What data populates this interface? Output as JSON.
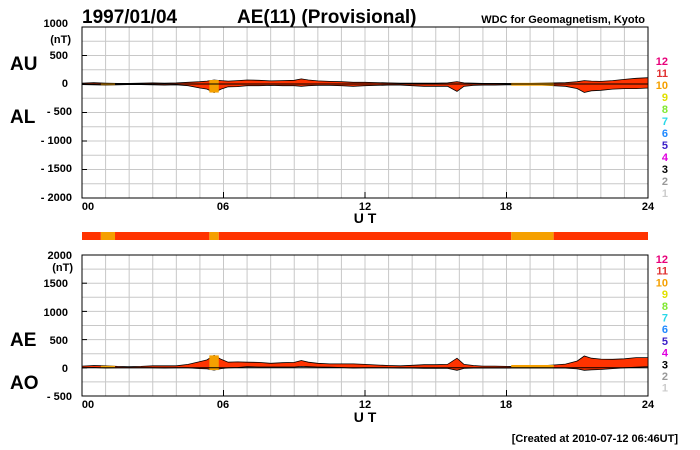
{
  "header": {
    "date": "1997/01/04",
    "title": "AE(11) (Provisional)",
    "source": "WDC for Geomagnetism, Kyoto"
  },
  "footer": {
    "created": "[Created at 2010-07-12 06:46UT]"
  },
  "colors": {
    "fill_main": "#ff3300",
    "fill_low": "#f5a000",
    "grid": "#c8c8c8",
    "scale": [
      "#cccccc",
      "#999999",
      "#000000",
      "#e000e0",
      "#3a1fc8",
      "#1e88ff",
      "#2ad8e8",
      "#80e830",
      "#e0e000",
      "#f5a000",
      "#e03030",
      "#e8007a"
    ]
  },
  "scale_labels": [
    "1",
    "2",
    "3",
    "4",
    "5",
    "6",
    "7",
    "8",
    "9",
    "10",
    "11",
    "12"
  ],
  "chart_data": [
    {
      "type": "area",
      "panel": "AU/AL",
      "left_labels": [
        "AU",
        "AL"
      ],
      "yunit": "(nT)",
      "ylim": [
        -2000,
        1000
      ],
      "yticks": [
        1000,
        500,
        0,
        -500,
        -1000,
        -1500,
        -2000
      ],
      "ytick_labels": [
        "1000",
        "500",
        "0",
        "- 500",
        "- 1000",
        "- 1500",
        "- 2000"
      ],
      "xlim": [
        0,
        24
      ],
      "xticks": [
        0,
        6,
        12,
        18,
        24
      ],
      "xtick_labels": [
        "00",
        "06",
        "12",
        "18",
        "24"
      ],
      "xlabel": "U T",
      "grid": true,
      "series": [
        {
          "x": [
            0,
            0.5,
            1,
            1.5,
            2,
            2.5,
            3,
            3.5,
            4,
            4.5,
            5,
            5.3,
            5.6,
            5.9,
            6.2,
            6.6,
            7,
            7.5,
            8,
            8.5,
            9,
            9.3,
            9.6,
            10,
            10.5,
            11,
            11.5,
            12,
            12.5,
            13,
            13.5,
            14,
            14.5,
            15,
            15.5,
            15.9,
            16.2,
            16.6,
            17,
            17.5,
            18,
            18.5,
            19,
            19.5,
            20,
            20.5,
            21,
            21.3,
            21.6,
            22,
            22.5,
            23,
            23.5,
            24
          ],
          "values": [
            15,
            25,
            15,
            10,
            10,
            15,
            20,
            15,
            20,
            30,
            40,
            50,
            70,
            60,
            50,
            60,
            70,
            65,
            55,
            60,
            65,
            90,
            70,
            55,
            45,
            40,
            30,
            30,
            25,
            20,
            15,
            15,
            15,
            15,
            20,
            40,
            20,
            15,
            10,
            10,
            10,
            5,
            10,
            15,
            20,
            25,
            40,
            60,
            50,
            45,
            60,
            80,
            100,
            110
          ]
        },
        {
          "x": [
            0,
            0.5,
            1,
            1.5,
            2,
            2.5,
            3,
            3.5,
            4,
            4.5,
            5,
            5.3,
            5.6,
            5.9,
            6.2,
            6.6,
            7,
            7.5,
            8,
            8.5,
            9,
            9.3,
            9.6,
            10,
            10.5,
            11,
            11.5,
            12,
            12.5,
            13,
            13.5,
            14,
            14.5,
            15,
            15.5,
            15.9,
            16.2,
            16.6,
            17,
            17.5,
            18,
            18.5,
            19,
            19.5,
            20,
            20.5,
            21,
            21.3,
            21.6,
            22,
            22.5,
            23,
            23.5,
            24
          ],
          "values": [
            -10,
            -15,
            -20,
            -15,
            -10,
            -10,
            -15,
            -20,
            -15,
            -30,
            -70,
            -90,
            -150,
            -90,
            -50,
            -45,
            -30,
            -30,
            -25,
            -30,
            -30,
            -40,
            -30,
            -25,
            -25,
            -30,
            -40,
            -30,
            -25,
            -20,
            -20,
            -30,
            -40,
            -40,
            -40,
            -130,
            -40,
            -25,
            -20,
            -20,
            -15,
            -15,
            -20,
            -20,
            -30,
            -40,
            -80,
            -150,
            -120,
            -110,
            -90,
            -80,
            -80,
            -70
          ]
        }
      ]
    },
    {
      "type": "area",
      "panel": "AE/AO",
      "left_labels": [
        "AE",
        "AO"
      ],
      "yunit": "(nT)",
      "ylim": [
        -500,
        2000
      ],
      "yticks": [
        2000,
        1500,
        1000,
        500,
        0,
        -500
      ],
      "ytick_labels": [
        "2000",
        "1500",
        "1000",
        "500",
        "0",
        "- 500"
      ],
      "xlim": [
        0,
        24
      ],
      "xticks": [
        0,
        6,
        12,
        18,
        24
      ],
      "xtick_labels": [
        "00",
        "06",
        "12",
        "18",
        "24"
      ],
      "xlabel": "U T",
      "grid": true,
      "series": [
        {
          "x": [
            0,
            0.5,
            1,
            1.5,
            2,
            2.5,
            3,
            3.5,
            4,
            4.5,
            5,
            5.3,
            5.6,
            5.9,
            6.2,
            6.6,
            7,
            7.5,
            8,
            8.5,
            9,
            9.3,
            9.6,
            10,
            10.5,
            11,
            11.5,
            12,
            12.5,
            13,
            13.5,
            14,
            14.5,
            15,
            15.5,
            15.9,
            16.2,
            16.6,
            17,
            17.5,
            18,
            18.5,
            19,
            19.5,
            20,
            20.5,
            21,
            21.3,
            21.6,
            22,
            22.5,
            23,
            23.5,
            24
          ],
          "values": [
            30,
            40,
            35,
            25,
            20,
            25,
            35,
            35,
            35,
            60,
            110,
            140,
            220,
            150,
            100,
            105,
            100,
            95,
            80,
            90,
            95,
            130,
            100,
            80,
            70,
            70,
            70,
            60,
            50,
            40,
            35,
            45,
            55,
            55,
            60,
            170,
            60,
            40,
            30,
            30,
            25,
            20,
            30,
            35,
            50,
            65,
            120,
            210,
            170,
            155,
            150,
            160,
            180,
            180
          ]
        },
        {
          "x": [
            0,
            0.5,
            1,
            1.5,
            2,
            2.5,
            3,
            3.5,
            4,
            4.5,
            5,
            5.3,
            5.6,
            5.9,
            6.2,
            6.6,
            7,
            7.5,
            8,
            8.5,
            9,
            9.3,
            9.6,
            10,
            10.5,
            11,
            11.5,
            12,
            12.5,
            13,
            13.5,
            14,
            14.5,
            15,
            15.5,
            15.9,
            16.2,
            16.6,
            17,
            17.5,
            18,
            18.5,
            19,
            19.5,
            20,
            20.5,
            21,
            21.3,
            21.6,
            22,
            22.5,
            23,
            23.5,
            24
          ],
          "values": [
            0,
            5,
            -5,
            0,
            0,
            0,
            0,
            -5,
            0,
            0,
            -15,
            -20,
            -40,
            -15,
            0,
            5,
            20,
            15,
            15,
            15,
            15,
            25,
            20,
            15,
            10,
            5,
            -5,
            0,
            0,
            0,
            -5,
            -5,
            -10,
            -10,
            -10,
            -45,
            -10,
            -5,
            -5,
            -5,
            -5,
            -5,
            -5,
            -5,
            -5,
            -5,
            -20,
            -45,
            -35,
            -30,
            -15,
            0,
            10,
            20
          ]
        }
      ]
    }
  ],
  "activity_bar": {
    "x": [
      0,
      0.8,
      1.4,
      5.4,
      5.8,
      18.2,
      20,
      24
    ],
    "levels": [
      11,
      10,
      11,
      10,
      11,
      10,
      11
    ]
  }
}
